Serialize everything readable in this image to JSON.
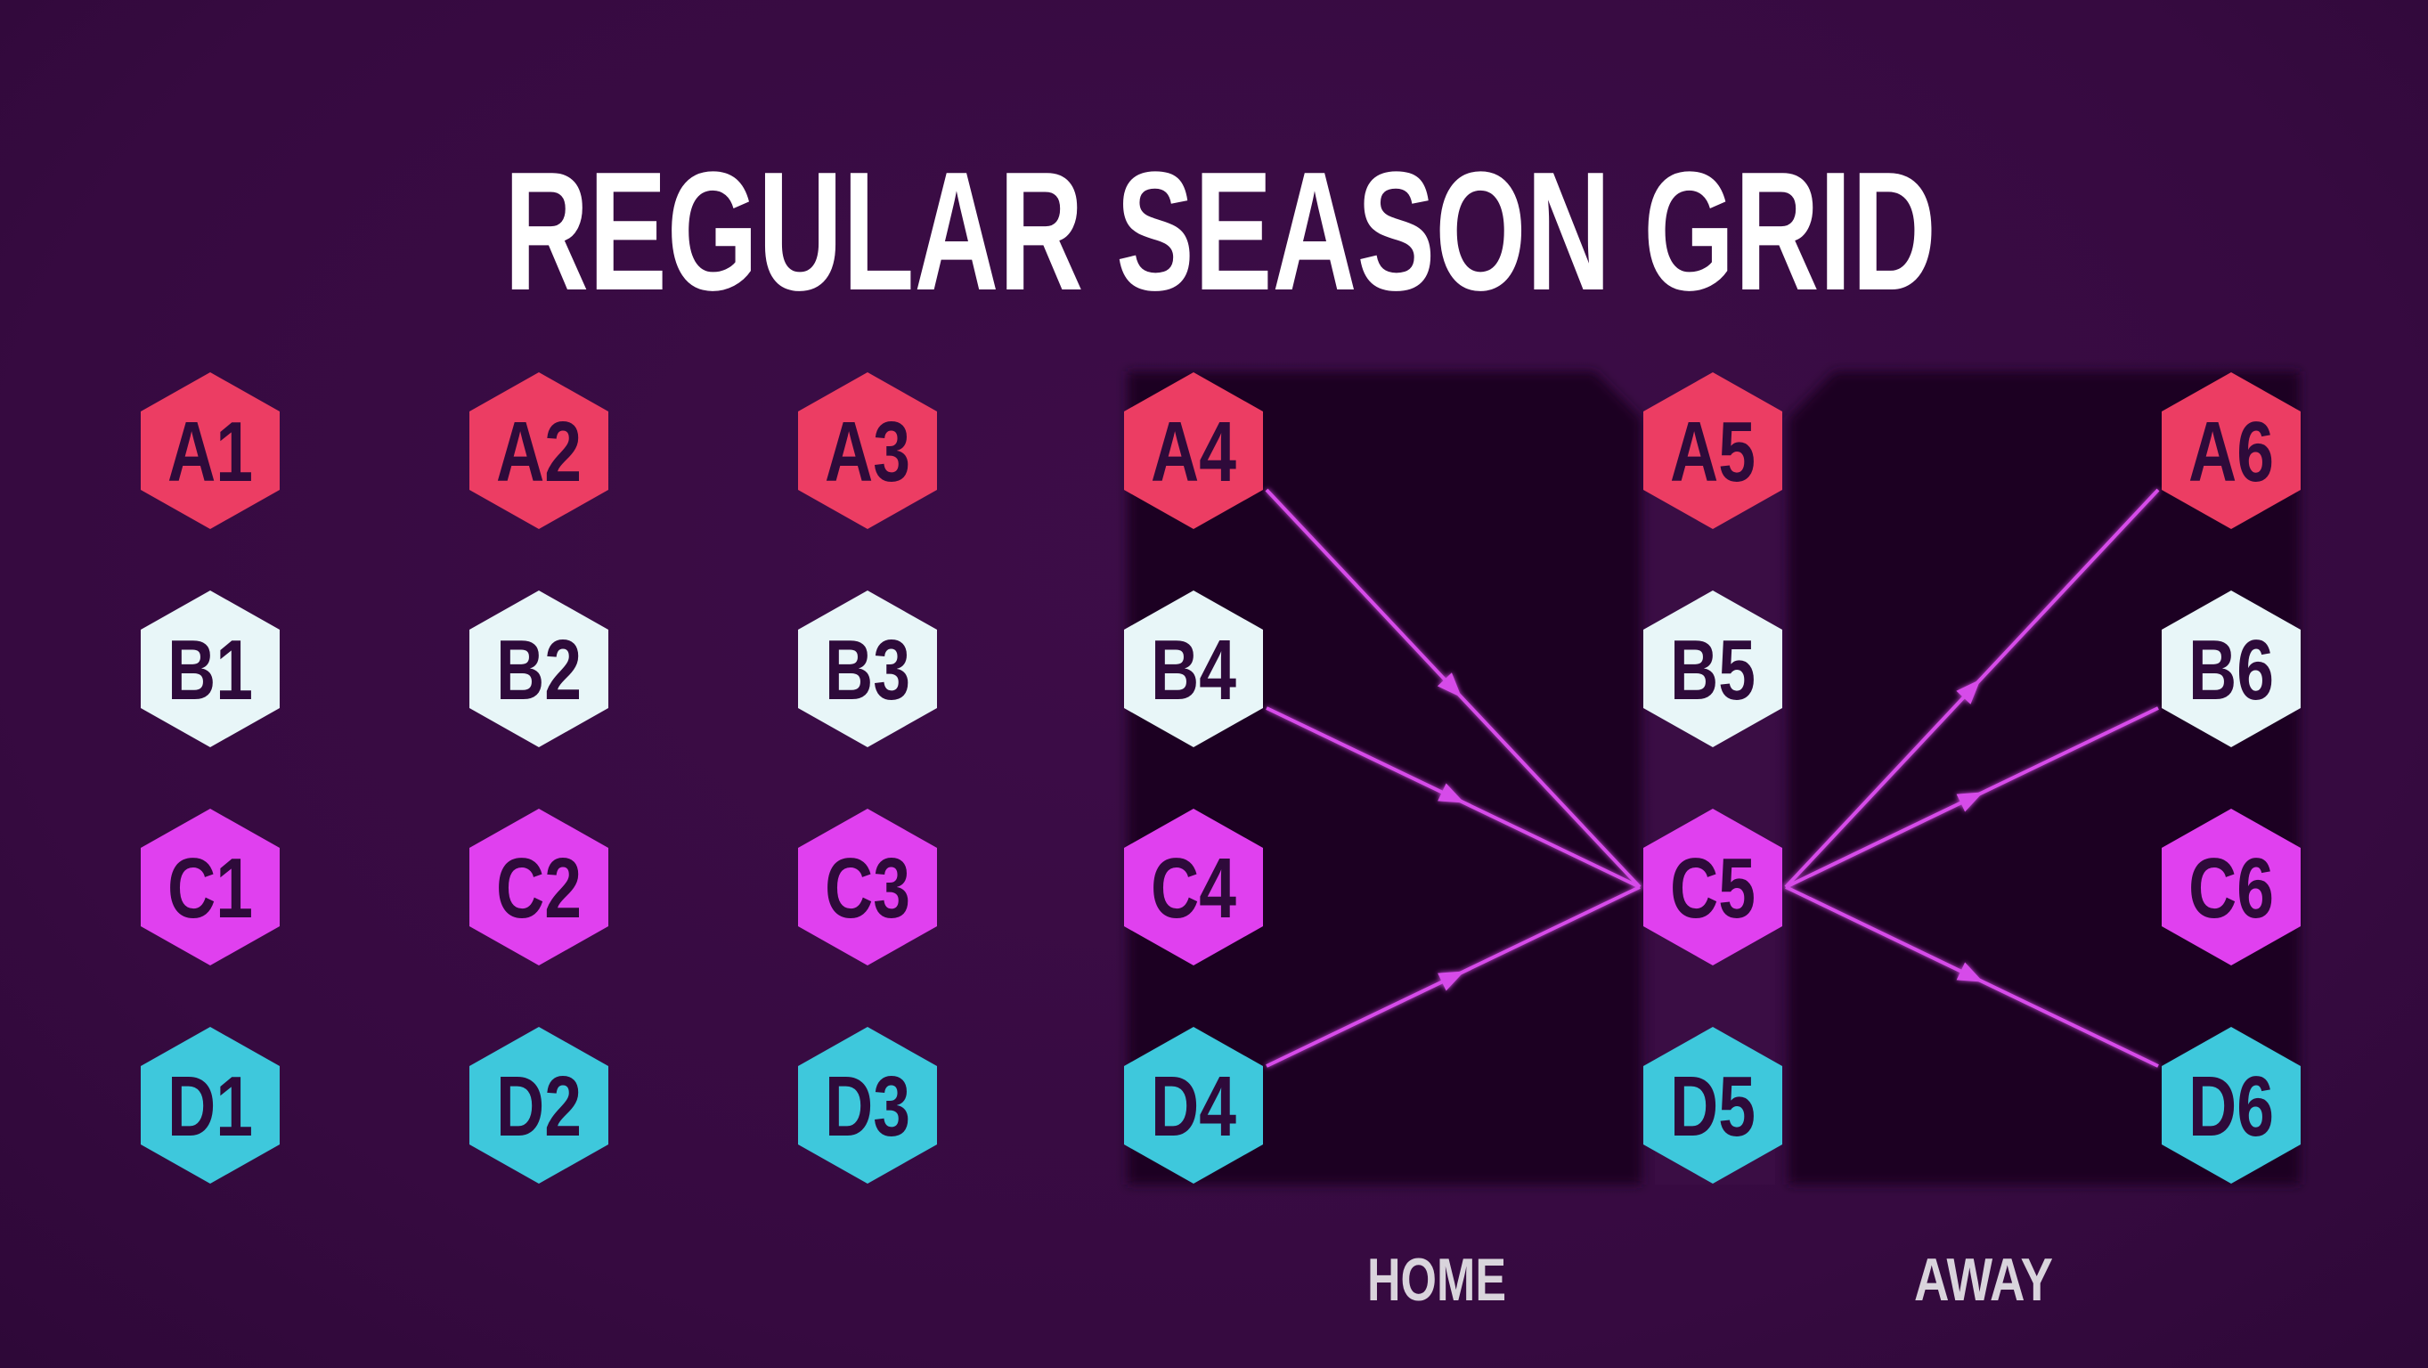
{
  "title": "REGULAR SEASON GRID",
  "labels": {
    "home": "HOME",
    "away": "AWAY"
  },
  "colors": {
    "background": "#3a0c45",
    "panel": "#1f0520",
    "row_A": "#ec3d63",
    "row_B": "#e8f6f8",
    "row_C": "#e040ef",
    "row_D": "#3ec8dc",
    "hex_text": "#2e0a3a",
    "arrow": "#d64ce9"
  },
  "rows": [
    "A",
    "B",
    "C",
    "D"
  ],
  "columns": [
    "1",
    "2",
    "3",
    "4",
    "5",
    "6"
  ],
  "arrows": [
    {
      "from": "A4",
      "to": "C5"
    },
    {
      "from": "B4",
      "to": "C5"
    },
    {
      "from": "D4",
      "to": "C5"
    },
    {
      "from": "C5",
      "to": "A6"
    },
    {
      "from": "C5",
      "to": "B6"
    },
    {
      "from": "C5",
      "to": "D6"
    }
  ]
}
